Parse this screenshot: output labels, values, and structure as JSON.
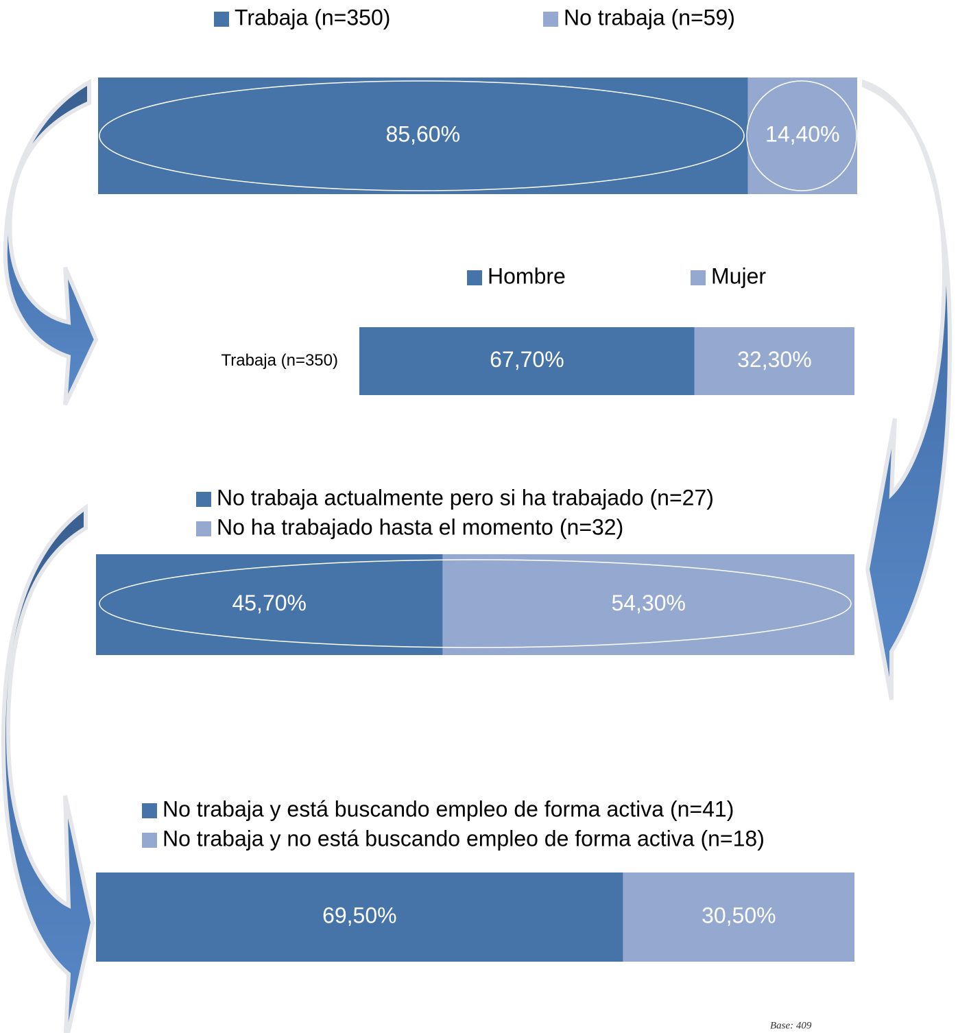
{
  "chart_data": [
    {
      "type": "bar",
      "orientation": "horizontal",
      "stacked": true,
      "categories": [
        null
      ],
      "xlim": [
        0,
        100
      ],
      "series": [
        {
          "name": "Trabaja (n=350)",
          "color": "#4673a8",
          "values": [
            85.6
          ],
          "value_labels": [
            "85,60%"
          ]
        },
        {
          "name": "No trabaja (n=59)",
          "color": "#95a9d0",
          "values": [
            14.4
          ],
          "value_labels": [
            "14,40%"
          ]
        }
      ]
    },
    {
      "type": "bar",
      "orientation": "horizontal",
      "stacked": true,
      "categories": [
        "Trabaja (n=350)"
      ],
      "xlim": [
        0,
        100
      ],
      "series": [
        {
          "name": "Hombre",
          "color": "#4673a8",
          "values": [
            67.7
          ],
          "value_labels": [
            "67,70%"
          ]
        },
        {
          "name": "Mujer",
          "color": "#95a9d0",
          "values": [
            32.3
          ],
          "value_labels": [
            "32,30%"
          ]
        }
      ]
    },
    {
      "type": "bar",
      "orientation": "horizontal",
      "stacked": true,
      "categories": [
        null
      ],
      "xlim": [
        0,
        100
      ],
      "series": [
        {
          "name": "No trabaja actualmente pero si ha trabajado (n=27)",
          "color": "#4673a8",
          "values": [
            45.7
          ],
          "value_labels": [
            "45,70%"
          ]
        },
        {
          "name": "No ha trabajado hasta el momento (n=32)",
          "color": "#95a9d0",
          "values": [
            54.3
          ],
          "value_labels": [
            "54,30%"
          ]
        }
      ]
    },
    {
      "type": "bar",
      "orientation": "horizontal",
      "stacked": true,
      "categories": [
        null
      ],
      "xlim": [
        0,
        100
      ],
      "series": [
        {
          "name": "No trabaja y está buscando empleo de forma activa (n=41)",
          "color": "#4673a8",
          "values": [
            69.5
          ],
          "value_labels": [
            "69,50%"
          ]
        },
        {
          "name": "No trabaja y no está buscando empleo de forma activa (n=18)",
          "color": "#95a9d0",
          "values": [
            30.5
          ],
          "value_labels": [
            "30,50%"
          ]
        }
      ]
    }
  ],
  "footnote": "Base: 409"
}
